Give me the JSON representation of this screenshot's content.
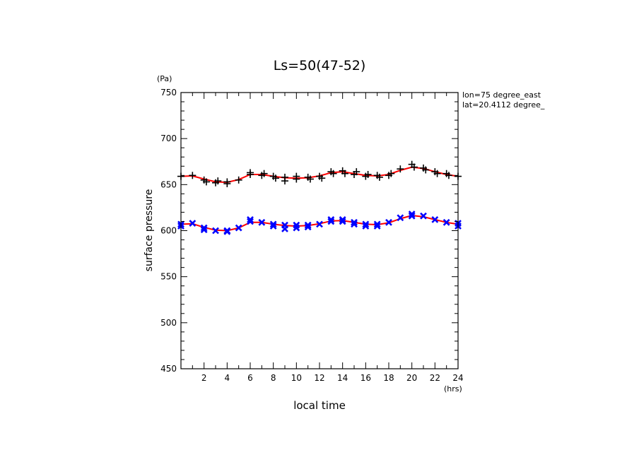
{
  "chart_data": {
    "type": "line",
    "title": "Ls=50(47-52)",
    "xlabel": "local time",
    "ylabel": "surface pressure",
    "x_unit": "(hrs)",
    "y_unit": "(Pa)",
    "xlim": [
      0,
      24
    ],
    "ylim": [
      450,
      750
    ],
    "x_ticks": [
      2,
      4,
      6,
      8,
      10,
      12,
      14,
      16,
      18,
      20,
      22,
      24
    ],
    "y_ticks": [
      450,
      500,
      550,
      600,
      650,
      700,
      750
    ],
    "annotations": [
      "lon=75 degree_east",
      "lat=20.4112 degree_"
    ],
    "grid": false,
    "series": [
      {
        "marker": "plus",
        "color": "#000000",
        "points": [
          [
            0,
            659
          ],
          [
            1,
            660
          ],
          [
            2,
            655
          ],
          [
            2.2,
            653
          ],
          [
            3,
            652
          ],
          [
            3.2,
            654
          ],
          [
            4,
            653
          ],
          [
            4,
            651
          ],
          [
            5,
            655
          ],
          [
            6,
            663
          ],
          [
            6,
            661
          ],
          [
            7,
            660
          ],
          [
            7.2,
            662
          ],
          [
            8,
            659
          ],
          [
            8.2,
            657
          ],
          [
            9,
            658
          ],
          [
            9,
            654
          ],
          [
            10,
            659
          ],
          [
            10,
            656
          ],
          [
            11,
            658
          ],
          [
            11.2,
            656
          ],
          [
            12,
            659
          ],
          [
            12.2,
            657
          ],
          [
            13,
            664
          ],
          [
            13.2,
            662
          ],
          [
            14,
            665
          ],
          [
            14.2,
            662
          ],
          [
            15,
            661
          ],
          [
            15.2,
            664
          ],
          [
            16,
            659
          ],
          [
            16.2,
            661
          ],
          [
            17,
            660
          ],
          [
            17.2,
            658
          ],
          [
            18,
            660
          ],
          [
            18.2,
            662
          ],
          [
            19,
            667
          ],
          [
            20,
            672
          ],
          [
            20.2,
            669
          ],
          [
            21,
            668
          ],
          [
            21.2,
            666
          ],
          [
            22,
            664
          ],
          [
            22.2,
            662
          ],
          [
            23,
            662
          ],
          [
            23.2,
            660
          ],
          [
            24,
            659
          ]
        ]
      },
      {
        "marker": "cross",
        "color": "#0000ff",
        "points": [
          [
            0,
            607
          ],
          [
            0,
            605
          ],
          [
            1,
            608
          ],
          [
            2,
            603
          ],
          [
            2,
            601
          ],
          [
            3,
            600
          ],
          [
            4,
            600
          ],
          [
            4,
            599
          ],
          [
            5,
            603
          ],
          [
            6,
            612
          ],
          [
            6,
            610
          ],
          [
            7,
            609
          ],
          [
            8,
            607
          ],
          [
            8,
            605
          ],
          [
            9,
            606
          ],
          [
            9,
            602
          ],
          [
            10,
            606
          ],
          [
            10,
            603
          ],
          [
            11,
            606
          ],
          [
            11,
            604
          ],
          [
            12,
            607
          ],
          [
            13,
            612
          ],
          [
            13,
            610
          ],
          [
            14,
            612
          ],
          [
            14,
            610
          ],
          [
            15,
            609
          ],
          [
            15,
            607
          ],
          [
            16,
            607
          ],
          [
            16,
            605
          ],
          [
            17,
            607
          ],
          [
            17,
            605
          ],
          [
            18,
            609
          ],
          [
            19,
            614
          ],
          [
            20,
            618
          ],
          [
            20,
            616
          ],
          [
            21,
            616
          ],
          [
            22,
            612
          ],
          [
            23,
            609
          ],
          [
            24,
            608
          ],
          [
            24,
            605
          ]
        ]
      }
    ],
    "fits": [
      {
        "color": "#ff0000",
        "points": [
          [
            0,
            659
          ],
          [
            1,
            659.5
          ],
          [
            2,
            656
          ],
          [
            3,
            653
          ],
          [
            4,
            652.5
          ],
          [
            5,
            655.5
          ],
          [
            6,
            661
          ],
          [
            7,
            661
          ],
          [
            8,
            659
          ],
          [
            9,
            657.5
          ],
          [
            10,
            657
          ],
          [
            11,
            657.5
          ],
          [
            12,
            659.5
          ],
          [
            13,
            663
          ],
          [
            14,
            664
          ],
          [
            15,
            662
          ],
          [
            16,
            660
          ],
          [
            17,
            659.5
          ],
          [
            18,
            661
          ],
          [
            19,
            665.5
          ],
          [
            20,
            669
          ],
          [
            21,
            667.5
          ],
          [
            22,
            664
          ],
          [
            23,
            661
          ],
          [
            24,
            659
          ]
        ]
      },
      {
        "color": "#ff0000",
        "points": [
          [
            0,
            607
          ],
          [
            1,
            607.5
          ],
          [
            2,
            603.5
          ],
          [
            3,
            600.5
          ],
          [
            4,
            600
          ],
          [
            5,
            603
          ],
          [
            6,
            609
          ],
          [
            7,
            609
          ],
          [
            8,
            607
          ],
          [
            9,
            605.5
          ],
          [
            10,
            605
          ],
          [
            11,
            605.5
          ],
          [
            12,
            607.5
          ],
          [
            13,
            610.5
          ],
          [
            14,
            611
          ],
          [
            15,
            609
          ],
          [
            16,
            607
          ],
          [
            17,
            606.5
          ],
          [
            18,
            608.5
          ],
          [
            19,
            613
          ],
          [
            20,
            616.5
          ],
          [
            21,
            615
          ],
          [
            22,
            612
          ],
          [
            23,
            609
          ],
          [
            24,
            607
          ]
        ]
      }
    ]
  }
}
